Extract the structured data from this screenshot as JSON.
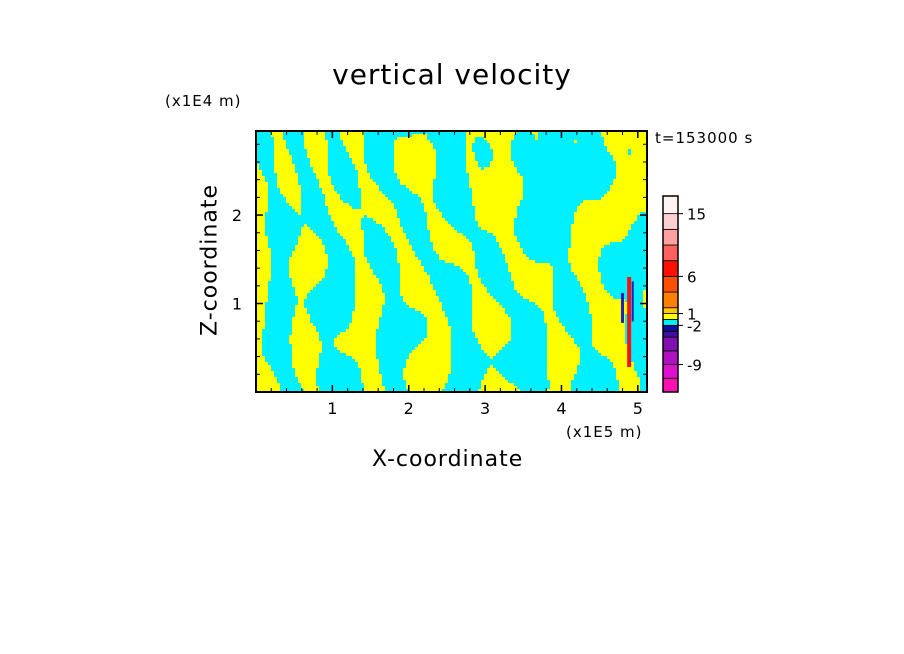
{
  "chart_data": {
    "type": "heatmap",
    "title": "vertical velocity",
    "xlabel": "X-coordinate",
    "ylabel": "Z-coordinate",
    "x_scale_label": "(x1E5 m)",
    "z_scale_label": "(x1E4 m)",
    "time_label": "t=153000 s",
    "xlim": [
      0,
      5.12
    ],
    "ylim": [
      0,
      2.95
    ],
    "x_ticks": [
      1,
      2,
      3,
      4,
      5
    ],
    "x_tick_labels": [
      "1",
      "2",
      "3",
      "4",
      "5"
    ],
    "y_ticks": [
      1,
      2
    ],
    "y_tick_labels": [
      "1",
      "2"
    ],
    "field_colors": {
      "positive": "#ffff00",
      "negative": "#00f0ff",
      "strong_positive": "#ff1010",
      "strong_negative": "#2020c0"
    },
    "colorbar": {
      "levels": [
        "-9",
        "-2",
        "1",
        "6",
        "15"
      ],
      "colors": [
        "#ff10b0",
        "#e010d0",
        "#b010c0",
        "#8010b0",
        "#4010a0",
        "#1010a0",
        "#00f0ff",
        "#ffff00",
        "#ffc800",
        "#ff8000",
        "#ff5000",
        "#ff1000",
        "#ff6060",
        "#ffa0a0",
        "#ffd0d0",
        "#fff2f2"
      ]
    }
  }
}
